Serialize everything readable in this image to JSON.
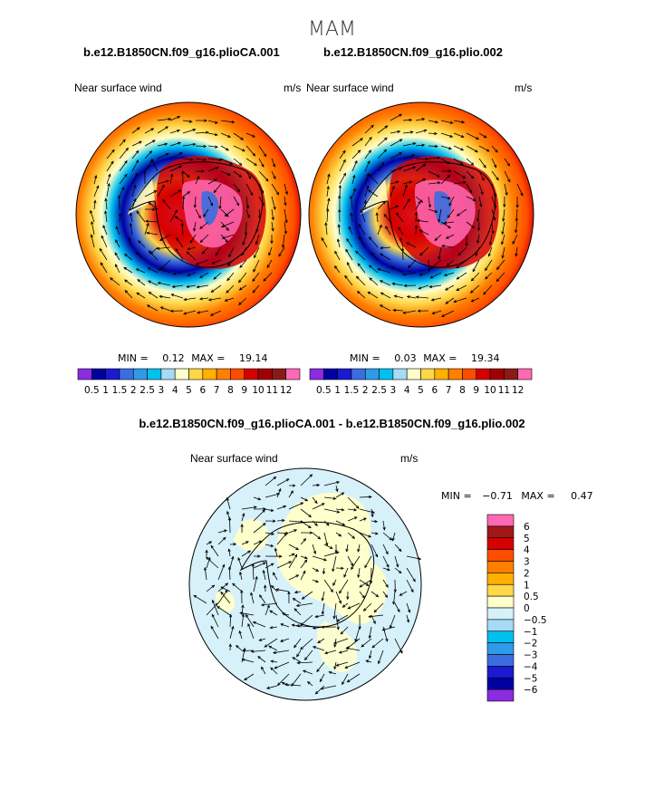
{
  "season": "MAM",
  "panel_left": {
    "case": "b.e12.B1850CN.f09_g16.plioCA.001",
    "variable": "Near surface wind",
    "units": "m/s",
    "min_label": "MIN =",
    "min": "0.12",
    "max_label": "MAX =",
    "max": "19.14"
  },
  "panel_right": {
    "case": "b.e12.B1850CN.f09_g16.plio.002",
    "variable": "Near surface wind",
    "units": "m/s",
    "min_label": "MIN =",
    "min": "0.03",
    "max_label": "MAX =",
    "max": "19.34"
  },
  "panel_diff": {
    "case": "b.e12.B1850CN.f09_g16.plioCA.001 - b.e12.B1850CN.f09_g16.plio.002",
    "variable": "Near surface wind",
    "units": "m/s",
    "min_label": "MIN =",
    "min": "−0.71",
    "max_label": "MAX =",
    "max": "0.47"
  },
  "colorbar_top": {
    "labels": [
      "0.5",
      "1",
      "1.5",
      "2",
      "2.5",
      "3",
      "4",
      "5",
      "6",
      "7",
      "8",
      "9",
      "10",
      "11",
      "12"
    ],
    "colors": [
      "#8b2be2",
      "#0000a0",
      "#1a1ad0",
      "#3a6ee0",
      "#2e9be8",
      "#00c0f0",
      "#a6daf5",
      "#ffffcc",
      "#ffd84a",
      "#ffb000",
      "#ff8000",
      "#ff4d00",
      "#d60000",
      "#a00000",
      "#8b1a1a",
      "#ff69b4"
    ]
  },
  "colorbar_diff": {
    "labels": [
      "6",
      "5",
      "4",
      "3",
      "2",
      "1",
      "0.5",
      "0",
      "−0.5",
      "−1",
      "−2",
      "−3",
      "−4",
      "−5",
      "−6"
    ],
    "colors": [
      "#ff69b4",
      "#a01818",
      "#d60000",
      "#ff4d00",
      "#ff8000",
      "#ffb000",
      "#ffd84a",
      "#ffffcc",
      "#d6f1fa",
      "#a6daf5",
      "#00c0f0",
      "#2e9be8",
      "#3a6ee0",
      "#1a1ad0",
      "#0000a0",
      "#8b2be2"
    ]
  }
}
